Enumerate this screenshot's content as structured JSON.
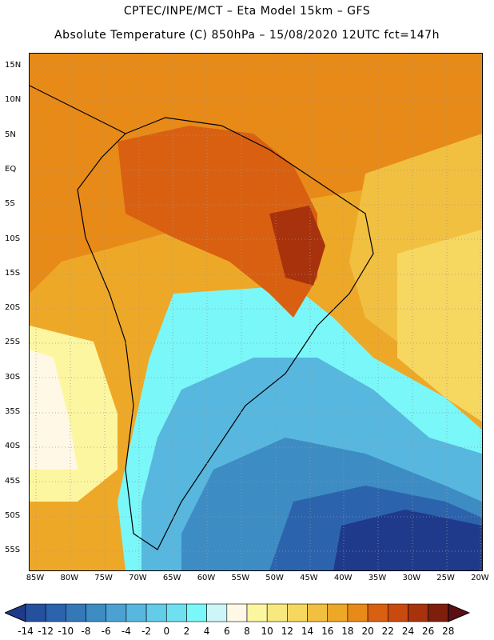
{
  "title_line1": "CPTEC/INPE/MCT –  Eta Model 15km – GFS",
  "title_line2": "Absolute Temperature (C) 850hPa – 15/08/2020 12UTC fct=147h",
  "latitude_labels": [
    "15N",
    "10N",
    "5N",
    "EQ",
    "5S",
    "10S",
    "15S",
    "20S",
    "25S",
    "30S",
    "35S",
    "40S",
    "45S",
    "50S",
    "55S"
  ],
  "longitude_labels": [
    "85W",
    "80W",
    "75W",
    "70W",
    "65W",
    "60W",
    "55W",
    "50W",
    "45W",
    "40W",
    "35W",
    "30W",
    "25W",
    "20W"
  ],
  "colorbar": {
    "labels": [
      "-14",
      "-12",
      "-10",
      "-8",
      "-6",
      "-4",
      "-2",
      "0",
      "2",
      "4",
      "6",
      "8",
      "10",
      "12",
      "14",
      "16",
      "18",
      "20",
      "22",
      "24",
      "26",
      "28"
    ],
    "colors": [
      "#1f3a8a",
      "#25509e",
      "#2c63ad",
      "#3478b8",
      "#3d8cc4",
      "#4ba2d2",
      "#58b7de",
      "#63cce8",
      "#6fe0ef",
      "#7af7f8",
      "#ccf6f8",
      "#fff8e6",
      "#fdf6a0",
      "#f8e880",
      "#f6d860",
      "#f2c040",
      "#eea828",
      "#e88a18",
      "#d96010",
      "#c94a0e",
      "#a8320c",
      "#7e1e0c",
      "#5b0f14"
    ]
  }
}
